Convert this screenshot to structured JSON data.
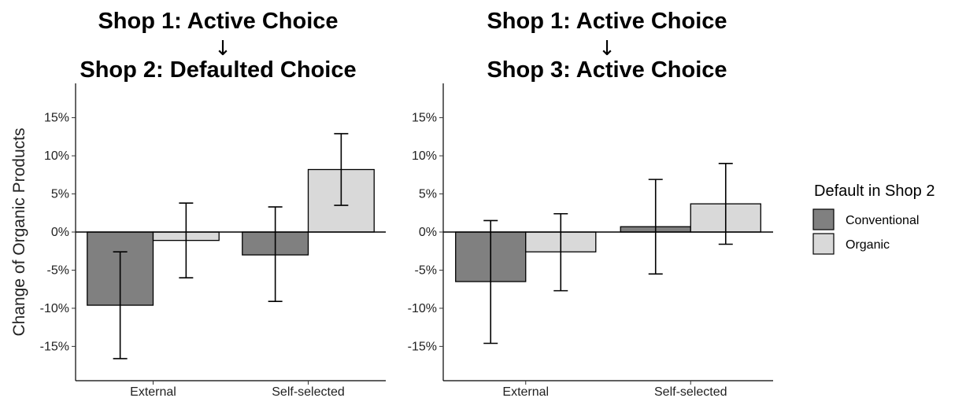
{
  "y_axis_label": "Change of Organic Products",
  "legend": {
    "title": "Default in Shop 2",
    "items": [
      {
        "label": "Conventional",
        "color": "#808080"
      },
      {
        "label": "Organic",
        "color": "#d9d9d9"
      }
    ]
  },
  "chart_data": [
    {
      "type": "bar",
      "title_line1": "Shop 1: Active Choice",
      "arrow": "↓",
      "title_line2": "Shop 2: Defaulted Choice",
      "categories": [
        "External",
        "Self-selected"
      ],
      "series": [
        {
          "name": "Conventional",
          "color": "#808080",
          "values": [
            -9.6,
            -3.0
          ],
          "error_low": [
            -16.6,
            -9.1
          ],
          "error_high": [
            -2.6,
            3.3
          ]
        },
        {
          "name": "Organic",
          "color": "#d9d9d9",
          "values": [
            -1.1,
            8.2
          ],
          "error_low": [
            -6.0,
            3.5
          ],
          "error_high": [
            3.8,
            12.9
          ]
        }
      ],
      "ylim": [
        -19.5,
        19.5
      ],
      "yticks": [
        15,
        10,
        5,
        0,
        -5,
        -10,
        -15
      ],
      "ytick_labels": [
        "15%",
        "10%",
        "5%",
        "0%",
        "-5%",
        "-10%",
        "-15%"
      ]
    },
    {
      "type": "bar",
      "title_line1": "Shop 1: Active Choice",
      "arrow": "↓",
      "title_line2": "Shop 3: Active Choice",
      "categories": [
        "External",
        "Self-selected"
      ],
      "series": [
        {
          "name": "Conventional",
          "color": "#808080",
          "values": [
            -6.5,
            0.7
          ],
          "error_low": [
            -14.6,
            -5.5
          ],
          "error_high": [
            1.5,
            6.9
          ]
        },
        {
          "name": "Organic",
          "color": "#d9d9d9",
          "values": [
            -2.6,
            3.7
          ],
          "error_low": [
            -7.7,
            -1.6
          ],
          "error_high": [
            2.4,
            9.0
          ]
        }
      ],
      "ylim": [
        -19.5,
        19.5
      ],
      "yticks": [
        15,
        10,
        5,
        0,
        -5,
        -10,
        -15
      ],
      "ytick_labels": [
        "15%",
        "10%",
        "5%",
        "0%",
        "-5%",
        "-10%",
        "-15%"
      ]
    }
  ]
}
